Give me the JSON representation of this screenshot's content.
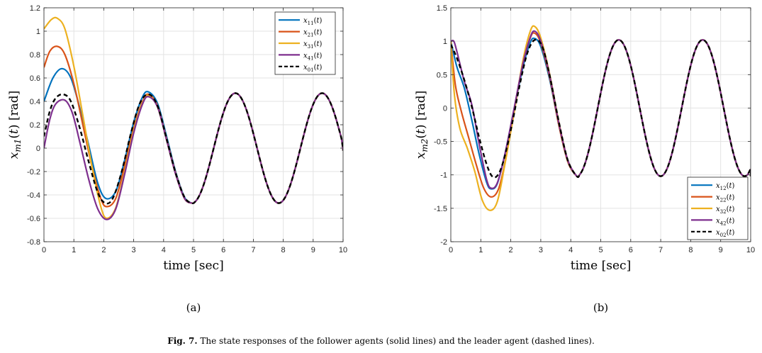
{
  "caption": {
    "label": "Fig. 7.",
    "text": "The state responses of the follower agents (solid lines) and the leader agent (dashed lines)."
  },
  "chart_data": [
    {
      "type": "line",
      "subplot_label": "(a)",
      "xlabel": "time [sec]",
      "ylabel": "x_m1(t) [rad]",
      "xlim": [
        0,
        10
      ],
      "ylim": [
        -0.8,
        1.2
      ],
      "xticks": [
        0,
        1,
        2,
        3,
        4,
        5,
        6,
        7,
        8,
        9,
        10
      ],
      "yticks": [
        -0.8,
        -0.6,
        -0.4,
        -0.2,
        0,
        0.2,
        0.4,
        0.6,
        0.8,
        1,
        1.2
      ],
      "ytick_labels": [
        "-0.8",
        "-0.6",
        "-0.4",
        "-0.2",
        "0",
        "0.2",
        "0.4",
        "0.6",
        "0.8",
        "1",
        "1.2"
      ],
      "grid": true,
      "legend_position": "top-right",
      "series": [
        {
          "name": "x11(t)",
          "base": "x",
          "sub": "11",
          "color": "#0072BD",
          "dashed": false,
          "x": [
            0,
            0.3,
            0.6,
            0.9,
            1.2,
            1.5,
            1.8,
            2.07,
            2.4,
            2.7,
            3.0,
            3.3,
            3.5,
            3.8,
            4.1,
            4.4,
            4.7,
            4.95,
            10
          ],
          "y": [
            0.4,
            0.6,
            0.68,
            0.6,
            0.34,
            0.02,
            -0.3,
            -0.43,
            -0.37,
            -0.1,
            0.22,
            0.44,
            0.48,
            0.38,
            0.1,
            -0.2,
            -0.42,
            -0.47,
            -0.02
          ]
        },
        {
          "name": "x21(t)",
          "base": "x",
          "sub": "21",
          "color": "#D95319",
          "dashed": false,
          "x": [
            0,
            0.2,
            0.45,
            0.7,
            1.0,
            1.3,
            1.6,
            1.9,
            2.1,
            2.4,
            2.7,
            3.0,
            3.3,
            3.5,
            3.8,
            4.1,
            4.4,
            4.7,
            4.95,
            10
          ],
          "y": [
            0.69,
            0.83,
            0.87,
            0.8,
            0.55,
            0.2,
            -0.15,
            -0.43,
            -0.5,
            -0.43,
            -0.15,
            0.17,
            0.4,
            0.46,
            0.36,
            0.08,
            -0.21,
            -0.43,
            -0.47,
            -0.02
          ]
        },
        {
          "name": "x31(t)",
          "base": "x",
          "sub": "31",
          "color": "#EDB120",
          "dashed": false,
          "x": [
            0,
            0.25,
            0.45,
            0.7,
            1.0,
            1.3,
            1.6,
            1.9,
            2.1,
            2.4,
            2.7,
            3.0,
            3.3,
            3.5,
            3.8,
            4.1,
            4.4,
            4.7,
            4.95,
            10
          ],
          "y": [
            1.02,
            1.1,
            1.11,
            1.02,
            0.7,
            0.28,
            -0.15,
            -0.5,
            -0.6,
            -0.51,
            -0.2,
            0.15,
            0.39,
            0.45,
            0.35,
            0.07,
            -0.22,
            -0.43,
            -0.47,
            -0.02
          ]
        },
        {
          "name": "x41(t)",
          "base": "x",
          "sub": "41",
          "color": "#7E2F8E",
          "dashed": false,
          "x": [
            0,
            0.2,
            0.4,
            0.7,
            0.95,
            1.2,
            1.5,
            1.8,
            2.1,
            2.4,
            2.7,
            3.0,
            3.3,
            3.5,
            3.8,
            4.1,
            4.4,
            4.7,
            4.95,
            10
          ],
          "y": [
            0,
            0.25,
            0.38,
            0.41,
            0.3,
            0.05,
            -0.27,
            -0.52,
            -0.61,
            -0.52,
            -0.22,
            0.13,
            0.38,
            0.44,
            0.35,
            0.07,
            -0.22,
            -0.43,
            -0.47,
            -0.02
          ]
        },
        {
          "name": "x01(t)",
          "base": "x",
          "sub": "01",
          "color": "#000000",
          "dashed": true,
          "x": [
            0,
            0.2,
            0.4,
            0.65,
            0.9,
            1.2,
            1.5,
            1.8,
            2.05,
            2.3,
            2.6,
            2.9,
            3.2,
            3.5,
            3.8,
            4.1,
            4.4,
            4.7,
            4.95,
            10
          ],
          "y": [
            0.1,
            0.32,
            0.43,
            0.46,
            0.4,
            0.17,
            -0.12,
            -0.38,
            -0.47,
            -0.43,
            -0.2,
            0.12,
            0.38,
            0.46,
            0.36,
            0.08,
            -0.21,
            -0.42,
            -0.47,
            -0.02
          ]
        }
      ]
    },
    {
      "type": "line",
      "subplot_label": "(b)",
      "xlabel": "time [sec]",
      "ylabel": "x_m2(t) [rad]",
      "xlim": [
        0,
        10
      ],
      "ylim": [
        -2,
        1.5
      ],
      "xticks": [
        0,
        1,
        2,
        3,
        4,
        5,
        6,
        7,
        8,
        9,
        10
      ],
      "yticks": [
        -2,
        -1.5,
        -1,
        -0.5,
        0,
        0.5,
        1,
        1.5
      ],
      "ytick_labels": [
        "-2",
        "-1.5",
        "-1",
        "-0.5",
        "0",
        "0.5",
        "1",
        "1.5"
      ],
      "grid": true,
      "legend_position": "bottom-right",
      "series": [
        {
          "name": "x12(t)",
          "base": "x",
          "sub": "12",
          "color": "#0072BD",
          "dashed": false,
          "x": [
            0,
            0.2,
            0.45,
            0.7,
            0.95,
            1.2,
            1.35,
            1.55,
            1.8,
            2.1,
            2.4,
            2.65,
            2.8,
            3.0,
            3.3,
            3.6,
            3.9,
            4.2,
            10
          ],
          "y": [
            1.0,
            0.62,
            0.3,
            -0.18,
            -0.7,
            -1.12,
            -1.21,
            -1.13,
            -0.7,
            -0.05,
            0.6,
            0.98,
            1.04,
            0.92,
            0.42,
            -0.25,
            -0.8,
            -1.02,
            -1.02
          ]
        },
        {
          "name": "x22(t)",
          "base": "x",
          "sub": "22",
          "color": "#D95319",
          "dashed": false,
          "x": [
            0,
            0.15,
            0.35,
            0.6,
            0.85,
            1.1,
            1.35,
            1.6,
            1.85,
            2.1,
            2.4,
            2.65,
            2.8,
            3.0,
            3.3,
            3.6,
            3.9,
            4.2,
            10
          ],
          "y": [
            1.0,
            0.35,
            -0.05,
            -0.45,
            -0.85,
            -1.2,
            -1.33,
            -1.2,
            -0.72,
            -0.05,
            0.65,
            1.05,
            1.12,
            0.97,
            0.45,
            -0.25,
            -0.8,
            -1.02,
            -1.02
          ]
        },
        {
          "name": "x32(t)",
          "base": "x",
          "sub": "32",
          "color": "#EDB120",
          "dashed": false,
          "x": [
            0,
            0.12,
            0.3,
            0.55,
            0.8,
            1.05,
            1.3,
            1.55,
            1.8,
            2.1,
            2.4,
            2.65,
            2.8,
            3.0,
            3.3,
            3.6,
            3.9,
            4.2,
            10
          ],
          "y": [
            1.0,
            0.2,
            -0.3,
            -0.6,
            -0.95,
            -1.38,
            -1.53,
            -1.4,
            -0.85,
            -0.1,
            0.7,
            1.15,
            1.22,
            1.05,
            0.5,
            -0.2,
            -0.78,
            -1.02,
            -1.02
          ]
        },
        {
          "name": "x42(t)",
          "base": "x",
          "sub": "42",
          "color": "#7E2F8E",
          "dashed": false,
          "x": [
            0,
            0.1,
            0.2,
            0.45,
            0.7,
            0.95,
            1.2,
            1.35,
            1.55,
            1.8,
            2.1,
            2.4,
            2.65,
            2.8,
            3.0,
            3.3,
            3.6,
            3.9,
            4.2,
            10
          ],
          "y": [
            1.0,
            1.0,
            0.85,
            0.4,
            0.05,
            -0.55,
            -1.08,
            -1.2,
            -1.12,
            -0.7,
            -0.03,
            0.65,
            1.06,
            1.15,
            1.0,
            0.48,
            -0.22,
            -0.78,
            -1.02,
            -1.02
          ]
        },
        {
          "name": "x02(t)",
          "base": "x",
          "sub": "02",
          "color": "#000000",
          "dashed": true,
          "x": [
            0,
            0.2,
            0.45,
            0.7,
            0.95,
            1.2,
            1.4,
            1.6,
            1.8,
            2.05,
            2.3,
            2.55,
            2.8,
            3.05,
            3.3,
            3.6,
            3.9,
            4.2,
            10
          ],
          "y": [
            0.95,
            0.75,
            0.42,
            0.02,
            -0.45,
            -0.85,
            -1.03,
            -0.98,
            -0.72,
            -0.22,
            0.35,
            0.82,
            1.02,
            0.92,
            0.48,
            -0.2,
            -0.78,
            -1.02,
            -1.02
          ]
        }
      ]
    }
  ]
}
